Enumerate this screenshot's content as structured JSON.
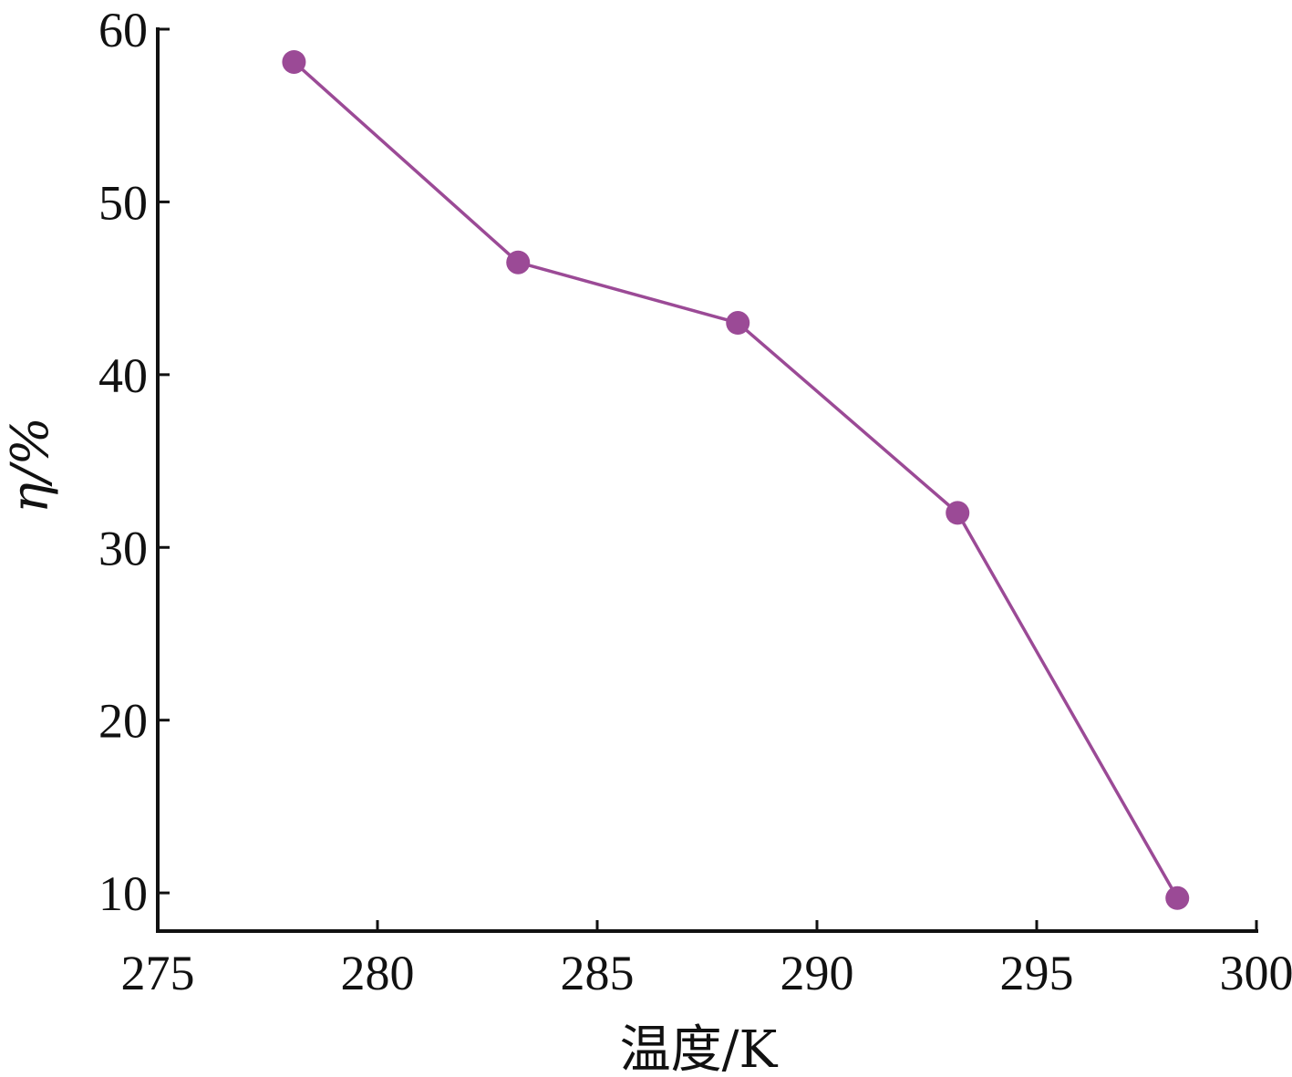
{
  "chart_data": {
    "type": "line",
    "title": "",
    "xlabel": "温度/K",
    "ylabel": "η/%",
    "xlim": [
      275,
      300
    ],
    "ylim": [
      8,
      60
    ],
    "xticks": [
      275,
      280,
      285,
      290,
      295,
      300
    ],
    "yticks": [
      10,
      20,
      30,
      40,
      50,
      60
    ],
    "xtick_labels": [
      "275",
      "280",
      "285",
      "290",
      "295",
      "300"
    ],
    "ytick_labels": [
      "10",
      "20",
      "30",
      "40",
      "50",
      "60"
    ],
    "grid": false,
    "series": [
      {
        "color": "#9b4a96",
        "x": [
          278.1,
          283.2,
          288.2,
          293.2,
          298.2
        ],
        "y": [
          58.1,
          46.5,
          43.0,
          32.0,
          9.7
        ]
      }
    ]
  }
}
